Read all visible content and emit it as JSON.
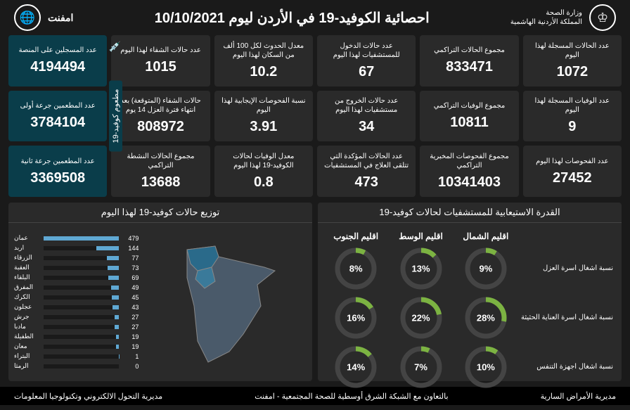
{
  "header": {
    "title": "احصائية الكوفيد-19 في الأردن ليوم",
    "date": "10/10/2021",
    "ministry": "وزارة الصحة",
    "kingdom": "المملكة الأردنية الهاشمية",
    "network": "امفنت"
  },
  "stats": [
    {
      "label": "عدد الحالات المسجلة لهذا اليوم",
      "value": "1072"
    },
    {
      "label": "مجموع الحالات التراكمي",
      "value": "833471"
    },
    {
      "label": "عدد حالات الدخول للمستشفيات لهذا اليوم",
      "value": "67"
    },
    {
      "label": "معدل الحدوث لكل 100 ألف من السكان لهذا اليوم",
      "value": "10.2"
    },
    {
      "label": "عدد حالات الشفاء لهذا اليوم",
      "value": "1015"
    },
    {
      "label": "عدد الوفيات المسجلة لهذا اليوم",
      "value": "9"
    },
    {
      "label": "مجموع الوفيات التراكمي",
      "value": "10811"
    },
    {
      "label": "عدد حالات الخروج من مستشفيات لهذا اليوم",
      "value": "34"
    },
    {
      "label": "نسبة الفحوصات الإيجابية لهذا اليوم",
      "value": "3.91"
    },
    {
      "label": "حالات الشفاء (المتوقعة) بعد انتهاء فترة العزل 14 يوم",
      "value": "808972"
    },
    {
      "label": "عدد الفحوصات لهذا اليوم",
      "value": "27452"
    },
    {
      "label": "مجموع الفحوصات المخبرية التراكمي",
      "value": "10341403"
    },
    {
      "label": "عدد الحالات المؤكدة التي تتلقى العلاج في المستشفيات",
      "value": "473"
    },
    {
      "label": "معدل الوفيات لحالات الكوفيد-19 لهذا اليوم",
      "value": "0.8"
    },
    {
      "label": "مجموع الحالات النشطة التراكمي",
      "value": "13688"
    }
  ],
  "vaccine": {
    "sideLabel": "مطعوم كوفيد-19",
    "cards": [
      {
        "label": "عدد المسجلين على المنصة",
        "value": "4194494"
      },
      {
        "label": "عدد المطعمين جرعة أولى",
        "value": "3784104"
      },
      {
        "label": "عدد المطعمين جرعة ثانية",
        "value": "3369508"
      }
    ]
  },
  "capacity": {
    "title": "القدرة الاستيعابية للمستشفيات لحالات كوفيد-19",
    "cols": [
      "اقليم الشمال",
      "اقليم الوسط",
      "اقليم الجنوب"
    ],
    "rows": [
      {
        "label": "نسبة اشغال اسرة العزل",
        "vals": [
          9,
          13,
          8
        ]
      },
      {
        "label": "نسبة اشغال اسرة العناية الحثيثة",
        "vals": [
          28,
          22,
          16
        ]
      },
      {
        "label": "نسبة اشغال اجهزة التنفس",
        "vals": [
          10,
          7,
          14
        ]
      }
    ],
    "color": "#7cb342"
  },
  "distribution": {
    "title": "توزيع حالات كوفيد-19 لهذا اليوم",
    "max": 479,
    "items": [
      {
        "name": "عمان",
        "val": 479
      },
      {
        "name": "اربد",
        "val": 144
      },
      {
        "name": "الزرقاء",
        "val": 77
      },
      {
        "name": "العقبة",
        "val": 73
      },
      {
        "name": "البلقاء",
        "val": 69
      },
      {
        "name": "المفرق",
        "val": 49
      },
      {
        "name": "الكرك",
        "val": 45
      },
      {
        "name": "عجلون",
        "val": 43
      },
      {
        "name": "جرش",
        "val": 27
      },
      {
        "name": "مادبا",
        "val": 27
      },
      {
        "name": "الطفيلة",
        "val": 19
      },
      {
        "name": "معان",
        "val": 19
      },
      {
        "name": "البتراء",
        "val": 1
      },
      {
        "name": "الرمثا",
        "val": 0
      }
    ]
  },
  "footer": {
    "right": "مديرية الأمراض السارية",
    "center": "بالتعاون مع الشبكة الشرق أوسطية للصحة المجتمعية - امفنت",
    "left": "مديرية التحول الالكتروني وتكنولوجيا المعلومات"
  }
}
